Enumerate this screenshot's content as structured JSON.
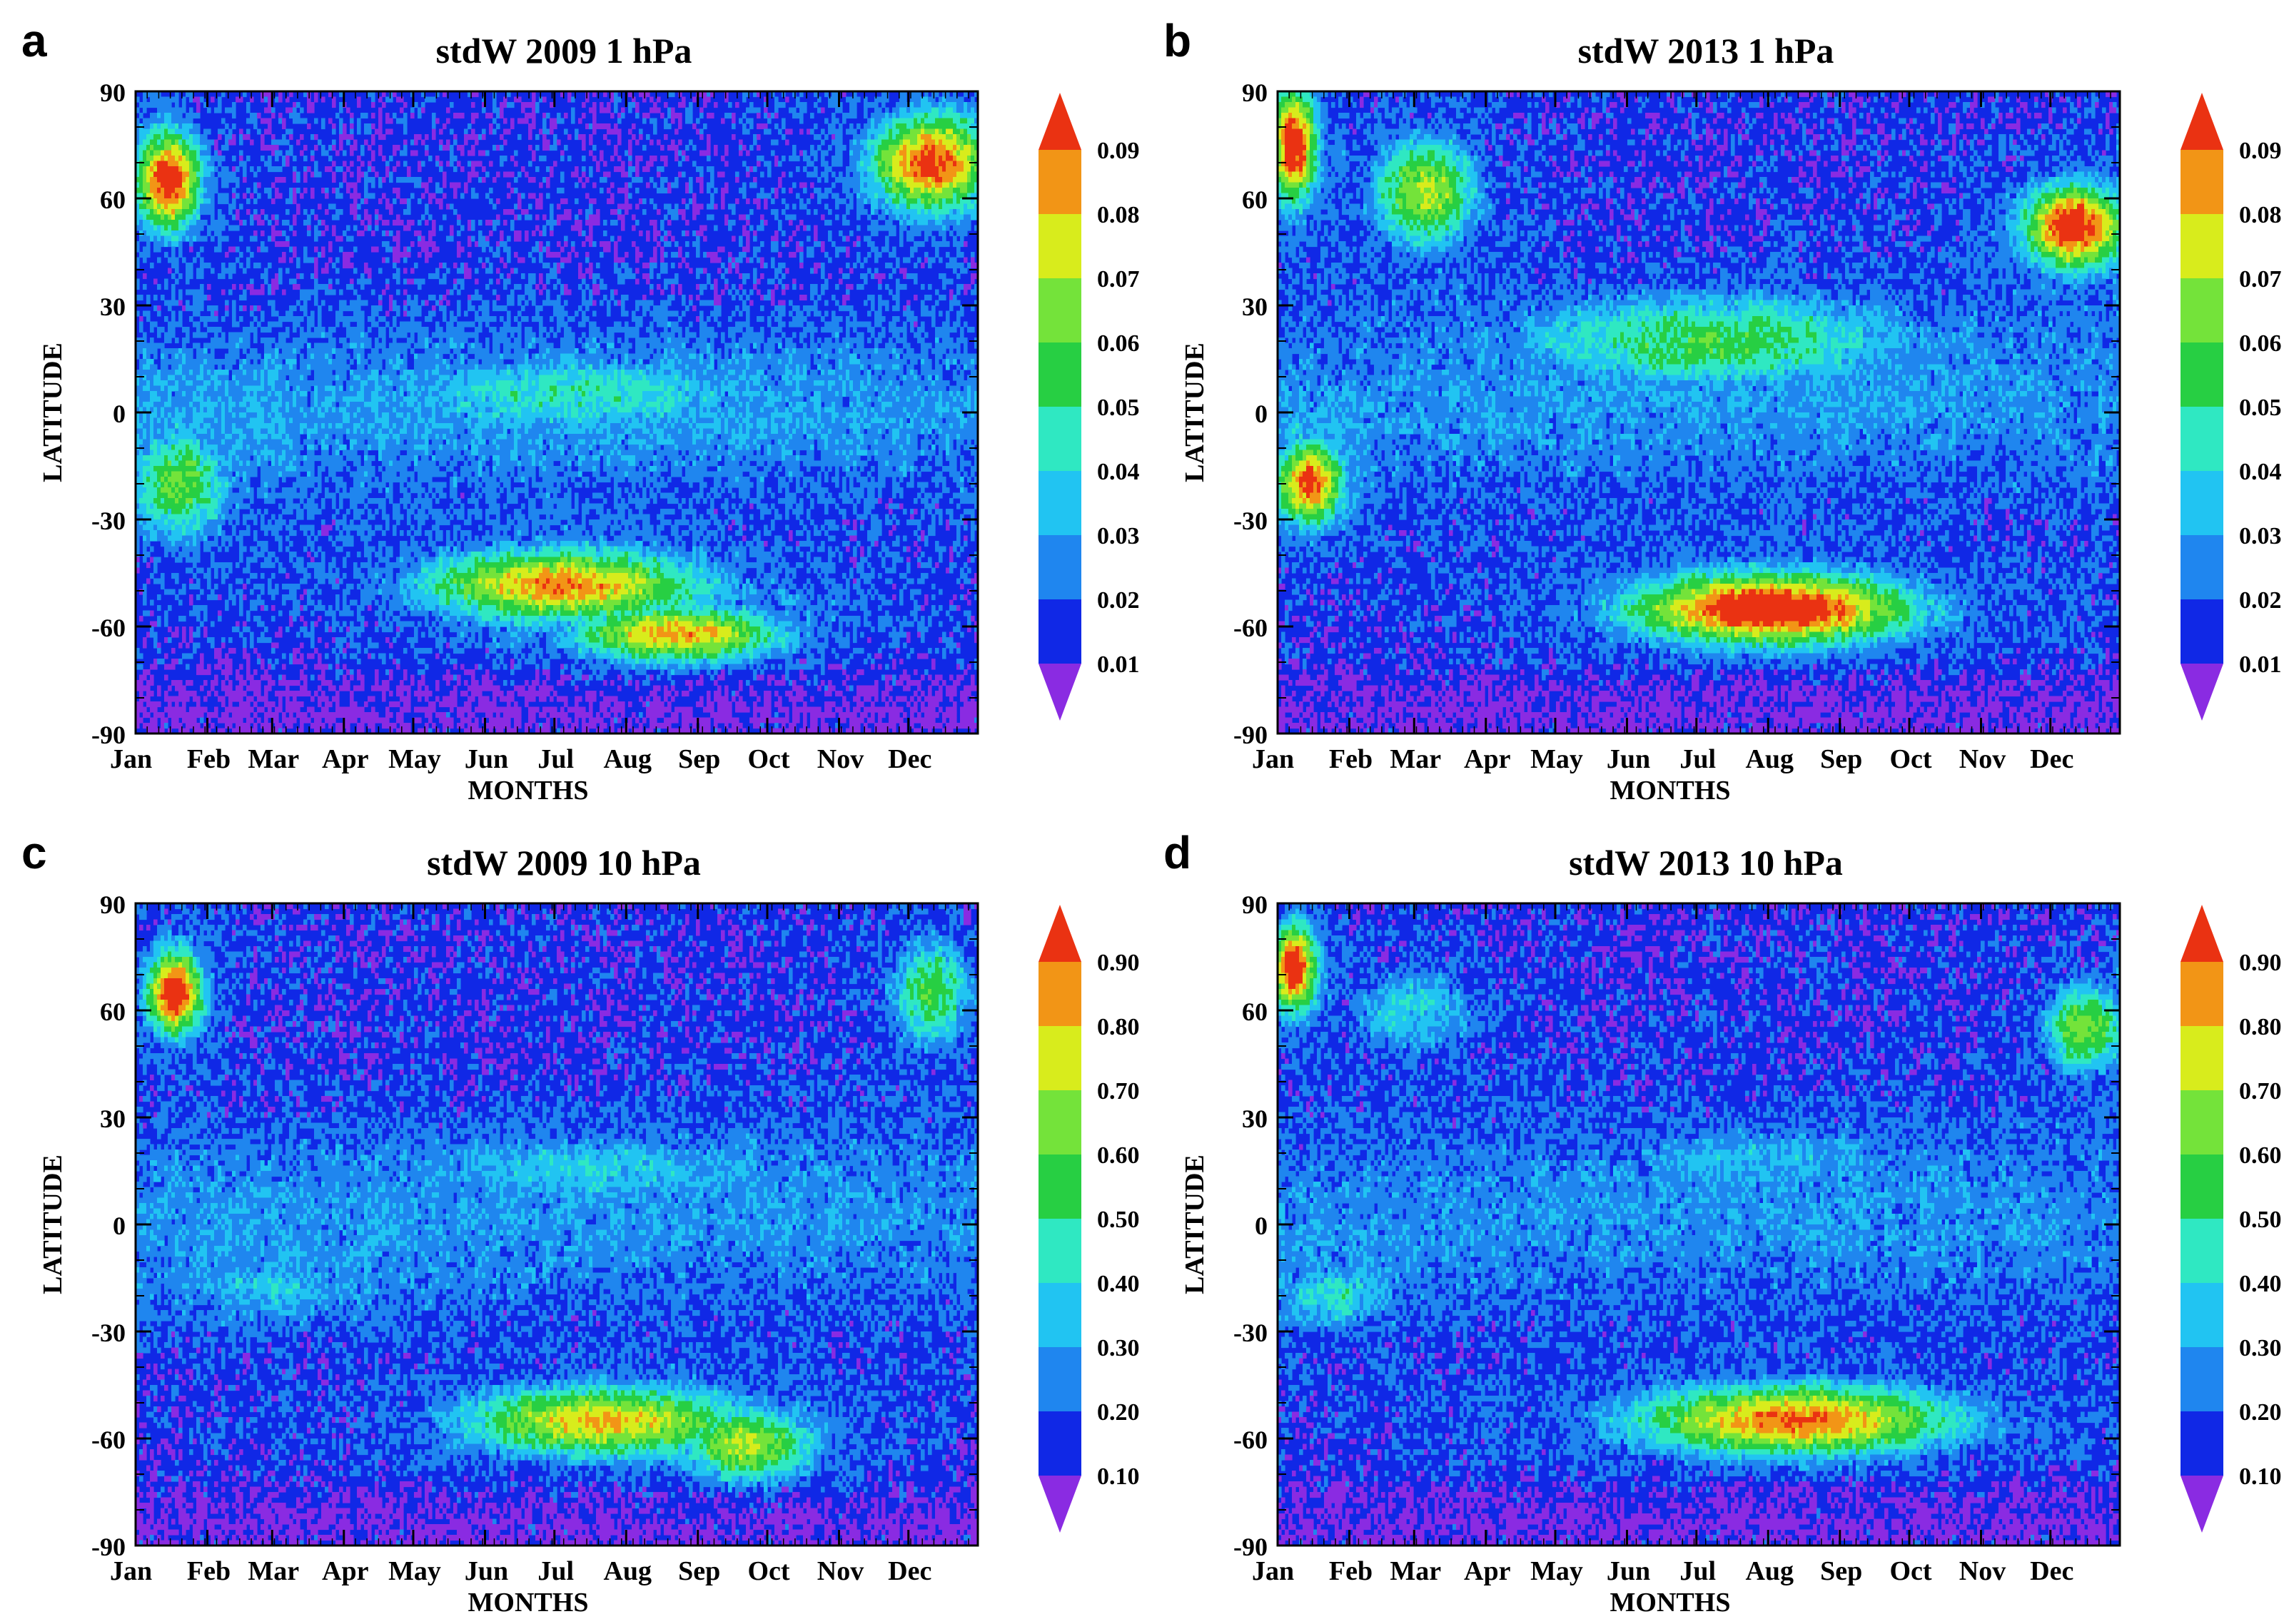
{
  "chart_data": [
    {
      "type": "heatmap",
      "panel_label": "a",
      "title": "stdW 2009 1 hPa",
      "xlabel": "MONTHS",
      "ylabel": "LATITUDE",
      "x_tick_labels": [
        "Jan",
        "Feb",
        "Mar",
        "Apr",
        "May",
        "Jun",
        "Jul",
        "Aug",
        "Sep",
        "Oct",
        "Nov",
        "Dec"
      ],
      "y_tick_labels": [
        "90",
        "60",
        "30",
        "0",
        "-30",
        "-60",
        "-90"
      ],
      "xlim": [
        1,
        365
      ],
      "ylim": [
        -90,
        90
      ],
      "colorbar": {
        "levels": [
          "0.01",
          "0.02",
          "0.03",
          "0.04",
          "0.05",
          "0.06",
          "0.07",
          "0.08",
          "0.09"
        ],
        "colors": [
          "#8a2be2",
          "#1028e6",
          "#1f86ef",
          "#21c4f2",
          "#2fe8c2",
          "#27cf43",
          "#74e33a",
          "#d8ec1c",
          "#f29516",
          "#ea3212"
        ]
      },
      "features": [
        {
          "day": 15,
          "lat": 65,
          "value": 0.085
        },
        {
          "day": 345,
          "lat": 70,
          "value": 0.08
        },
        {
          "day": 20,
          "lat": -20,
          "value": 0.05
        },
        {
          "day": 185,
          "lat": -48,
          "value": 0.07
        },
        {
          "day": 235,
          "lat": -62,
          "value": 0.07
        },
        {
          "day": 190,
          "lat": 5,
          "value": 0.035
        }
      ]
    },
    {
      "type": "heatmap",
      "panel_label": "b",
      "title": "stdW 2013 1 hPa",
      "xlabel": "MONTHS",
      "ylabel": "LATITUDE",
      "x_tick_labels": [
        "Jan",
        "Feb",
        "Mar",
        "Apr",
        "May",
        "Jun",
        "Jul",
        "Aug",
        "Sep",
        "Oct",
        "Nov",
        "Dec"
      ],
      "y_tick_labels": [
        "90",
        "60",
        "30",
        "0",
        "-30",
        "-60",
        "-90"
      ],
      "xlim": [
        1,
        365
      ],
      "ylim": [
        -90,
        90
      ],
      "colorbar": {
        "levels": [
          "0.01",
          "0.02",
          "0.03",
          "0.04",
          "0.05",
          "0.06",
          "0.07",
          "0.08",
          "0.09"
        ],
        "colors": [
          "#8a2be2",
          "#1028e6",
          "#1f86ef",
          "#21c4f2",
          "#2fe8c2",
          "#27cf43",
          "#74e33a",
          "#d8ec1c",
          "#f29516",
          "#ea3212"
        ]
      },
      "features": [
        {
          "day": 8,
          "lat": 75,
          "value": 0.085
        },
        {
          "day": 345,
          "lat": 52,
          "value": 0.085
        },
        {
          "day": 15,
          "lat": -20,
          "value": 0.08
        },
        {
          "day": 65,
          "lat": 62,
          "value": 0.06
        },
        {
          "day": 215,
          "lat": -55,
          "value": 0.09
        },
        {
          "day": 190,
          "lat": 20,
          "value": 0.045
        }
      ]
    },
    {
      "type": "heatmap",
      "panel_label": "c",
      "title": "stdW 2009 10 hPa",
      "xlabel": "MONTHS",
      "ylabel": "LATITUDE",
      "x_tick_labels": [
        "Jan",
        "Feb",
        "Mar",
        "Apr",
        "May",
        "Jun",
        "Jul",
        "Aug",
        "Sep",
        "Oct",
        "Nov",
        "Dec"
      ],
      "y_tick_labels": [
        "90",
        "60",
        "30",
        "0",
        "-30",
        "-60",
        "-90"
      ],
      "xlim": [
        1,
        365
      ],
      "ylim": [
        -90,
        90
      ],
      "colorbar": {
        "levels": [
          "0.10",
          "0.20",
          "0.30",
          "0.40",
          "0.50",
          "0.60",
          "0.70",
          "0.80",
          "0.90"
        ],
        "colors": [
          "#8a2be2",
          "#1028e6",
          "#1f86ef",
          "#21c4f2",
          "#2fe8c2",
          "#27cf43",
          "#74e33a",
          "#d8ec1c",
          "#f29516",
          "#ea3212"
        ]
      },
      "features": [
        {
          "day": 18,
          "lat": 65,
          "value": 0.85
        },
        {
          "day": 345,
          "lat": 65,
          "value": 0.45
        },
        {
          "day": 200,
          "lat": 15,
          "value": 0.28
        },
        {
          "day": 60,
          "lat": -18,
          "value": 0.28
        },
        {
          "day": 200,
          "lat": -55,
          "value": 0.65
        },
        {
          "day": 265,
          "lat": -62,
          "value": 0.6
        }
      ]
    },
    {
      "type": "heatmap",
      "panel_label": "d",
      "title": "stdW 2013 10 hPa",
      "xlabel": "MONTHS",
      "ylabel": "LATITUDE",
      "x_tick_labels": [
        "Jan",
        "Feb",
        "Mar",
        "Apr",
        "May",
        "Jun",
        "Jul",
        "Aug",
        "Sep",
        "Oct",
        "Nov",
        "Dec"
      ],
      "y_tick_labels": [
        "90",
        "60",
        "30",
        "0",
        "-30",
        "-60",
        "-90"
      ],
      "xlim": [
        1,
        365
      ],
      "ylim": [
        -90,
        90
      ],
      "colorbar": {
        "levels": [
          "0.10",
          "0.20",
          "0.30",
          "0.40",
          "0.50",
          "0.60",
          "0.70",
          "0.80",
          "0.90"
        ],
        "colors": [
          "#8a2be2",
          "#1028e6",
          "#1f86ef",
          "#21c4f2",
          "#2fe8c2",
          "#27cf43",
          "#74e33a",
          "#d8ec1c",
          "#f29516",
          "#ea3212"
        ]
      },
      "features": [
        {
          "day": 8,
          "lat": 72,
          "value": 0.85
        },
        {
          "day": 350,
          "lat": 55,
          "value": 0.55
        },
        {
          "day": 60,
          "lat": 60,
          "value": 0.3
        },
        {
          "day": 210,
          "lat": 18,
          "value": 0.25
        },
        {
          "day": 25,
          "lat": -20,
          "value": 0.35
        },
        {
          "day": 225,
          "lat": -55,
          "value": 0.75
        }
      ]
    }
  ]
}
